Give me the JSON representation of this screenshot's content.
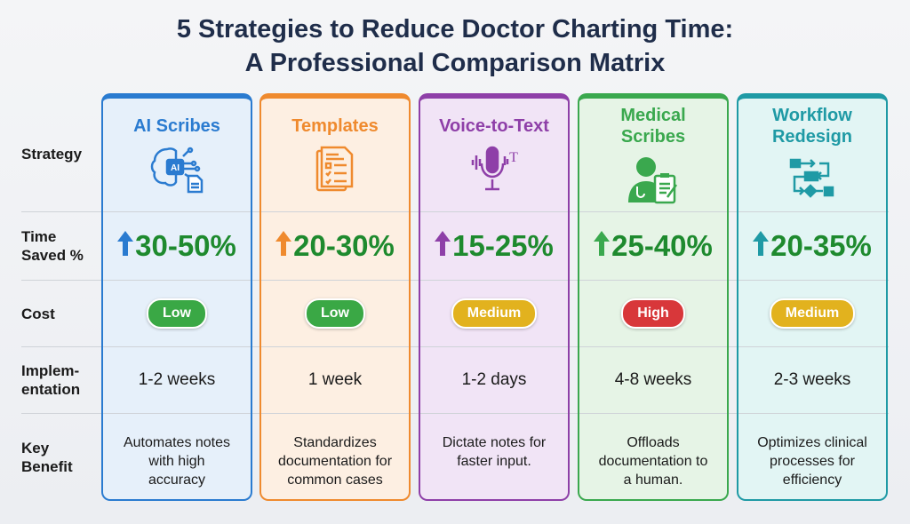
{
  "title": {
    "line1": "5 Strategies to Reduce Doctor Charting Time:",
    "line2": "A Professional Comparison Matrix"
  },
  "row_labels": {
    "strategy": "Strategy",
    "time_saved": [
      "Time",
      "Saved %"
    ],
    "cost": "Cost",
    "implementation": [
      "Implem-",
      "entation"
    ],
    "key_benefit": [
      "Key",
      "Benefit"
    ]
  },
  "columns": [
    {
      "name": [
        "AI Scribes",
        ""
      ],
      "icon": "ai-brain-document-icon",
      "color": "#2a7bd0",
      "bg": "#e6f0fa",
      "time_saved": "30-50%",
      "cost": "Low",
      "cost_color": "#3aa845",
      "implementation": "1-2 weeks",
      "benefit": [
        "Automates notes",
        "with high",
        "accuracy"
      ]
    },
    {
      "name": [
        "Templates",
        ""
      ],
      "icon": "checklist-document-icon",
      "color": "#ef8a2e",
      "bg": "#fdefe2",
      "time_saved": "20-30%",
      "cost": "Low",
      "cost_color": "#3aa845",
      "implementation": "1 week",
      "benefit": [
        "Standardizes",
        "documentation for",
        "common cases"
      ]
    },
    {
      "name": [
        "Voice-to-Text",
        ""
      ],
      "icon": "microphone-text-icon",
      "color": "#8e3fa8",
      "bg": "#f1e4f6",
      "time_saved": "15-25%",
      "cost": "Medium",
      "cost_color": "#e2b21e",
      "implementation": "1-2 days",
      "benefit": [
        "Dictate notes for",
        "faster input.",
        ""
      ]
    },
    {
      "name": [
        "Medical",
        "Scribes"
      ],
      "icon": "doctor-clipboard-icon",
      "color": "#3aa84e",
      "bg": "#e6f4e6",
      "time_saved": "25-40%",
      "cost": "High",
      "cost_color": "#d8373a",
      "implementation": "4-8 weeks",
      "benefit": [
        "Offloads",
        "documentation to",
        "a human."
      ]
    },
    {
      "name": [
        "Workflow",
        "Redesign"
      ],
      "icon": "workflow-diagram-icon",
      "color": "#1f9aa5",
      "bg": "#e2f5f4",
      "time_saved": "20-35%",
      "cost": "Medium",
      "cost_color": "#e2b21e",
      "implementation": "2-3 weeks",
      "benefit": [
        "Optimizes clinical",
        "processes for",
        "efficiency"
      ]
    }
  ]
}
